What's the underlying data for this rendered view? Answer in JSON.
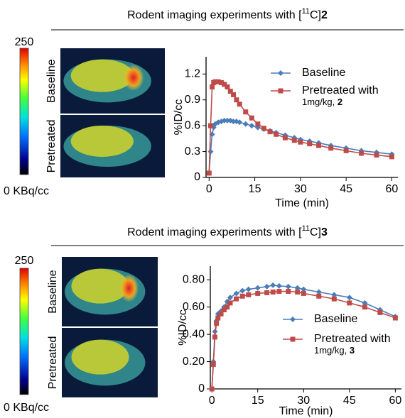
{
  "chart_data": [
    {
      "type": "line",
      "title": [
        "Rodent imaging experiments with [",
        "11",
        "C]",
        "2"
      ],
      "scale_max": 250,
      "scale_min_label": "0 KBq/cc",
      "images": [
        "Baseline",
        "Pretreated"
      ],
      "ylabel": "%ID/cc",
      "xlabel": "Time (min)",
      "x": [
        0,
        0.5,
        1,
        1.5,
        2,
        3,
        4,
        5,
        6,
        7,
        8,
        9,
        10,
        12,
        14,
        16,
        18,
        20,
        22,
        25,
        28,
        30,
        33,
        36,
        40,
        45,
        50,
        55,
        60
      ],
      "series": [
        {
          "name": [
            "Baseline"
          ],
          "color": "#4a7ebb",
          "marker": "diamond",
          "values": [
            0.05,
            0.3,
            0.5,
            0.58,
            0.62,
            0.64,
            0.65,
            0.66,
            0.66,
            0.66,
            0.65,
            0.65,
            0.64,
            0.62,
            0.6,
            0.58,
            0.56,
            0.54,
            0.52,
            0.49,
            0.46,
            0.44,
            0.42,
            0.4,
            0.37,
            0.34,
            0.31,
            0.29,
            0.27
          ]
        },
        {
          "name": [
            "Pretreated with",
            "1mg/kg, ",
            "2"
          ],
          "color": "#be4b48",
          "marker": "square",
          "values": [
            0.05,
            0.6,
            1.05,
            1.1,
            1.11,
            1.11,
            1.1,
            1.08,
            1.05,
            1.0,
            0.96,
            0.9,
            0.85,
            0.76,
            0.69,
            0.62,
            0.57,
            0.53,
            0.5,
            0.46,
            0.43,
            0.41,
            0.39,
            0.37,
            0.34,
            0.31,
            0.28,
            0.26,
            0.24
          ]
        }
      ],
      "xlim": [
        -1,
        62
      ],
      "xticks": [
        0,
        15,
        30,
        45,
        60
      ],
      "ylim": [
        0,
        1.4
      ],
      "yticks": [
        0,
        0.3,
        0.6,
        0.9,
        1.2
      ]
    },
    {
      "type": "line",
      "title": [
        "Rodent imaging experiments with [",
        "11",
        "C]",
        "3"
      ],
      "scale_max": 250,
      "scale_min_label": "0 KBq/cc",
      "images": [
        "Baseline",
        "Pretreated"
      ],
      "ylabel": "%ID/cc",
      "xlabel": "Time (min)",
      "x": [
        0,
        0.5,
        1,
        1.5,
        2,
        3,
        4,
        5,
        6,
        8,
        10,
        12,
        15,
        18,
        20,
        22,
        25,
        28,
        30,
        35,
        40,
        45,
        50,
        55,
        60
      ],
      "series": [
        {
          "name": [
            "Baseline"
          ],
          "color": "#4a7ebb",
          "marker": "diamond",
          "values": [
            0,
            0.2,
            0.42,
            0.5,
            0.55,
            0.57,
            0.6,
            0.64,
            0.67,
            0.7,
            0.72,
            0.73,
            0.74,
            0.75,
            0.76,
            0.755,
            0.75,
            0.74,
            0.73,
            0.71,
            0.69,
            0.67,
            0.63,
            0.58,
            0.53
          ]
        },
        {
          "name": [
            "Pretreated with",
            "1mg/kg, ",
            "3"
          ],
          "color": "#be4b48",
          "marker": "square",
          "values": [
            0,
            0.18,
            0.38,
            0.48,
            0.52,
            0.55,
            0.58,
            0.6,
            0.63,
            0.66,
            0.68,
            0.69,
            0.7,
            0.705,
            0.71,
            0.715,
            0.715,
            0.71,
            0.7,
            0.68,
            0.66,
            0.63,
            0.6,
            0.56,
            0.52
          ]
        }
      ],
      "xlim": [
        -0.5,
        62
      ],
      "xticks": [
        0,
        15,
        30,
        45,
        60
      ],
      "ylim": [
        0,
        0.9
      ],
      "yticks": [
        0,
        {
          "value": 0.2,
          "label": "0.20"
        },
        {
          "value": 0.4,
          "label": "0.40"
        },
        {
          "value": 0.6,
          "label": "0.60"
        },
        {
          "value": 0.8,
          "label": "0.80"
        }
      ]
    }
  ]
}
